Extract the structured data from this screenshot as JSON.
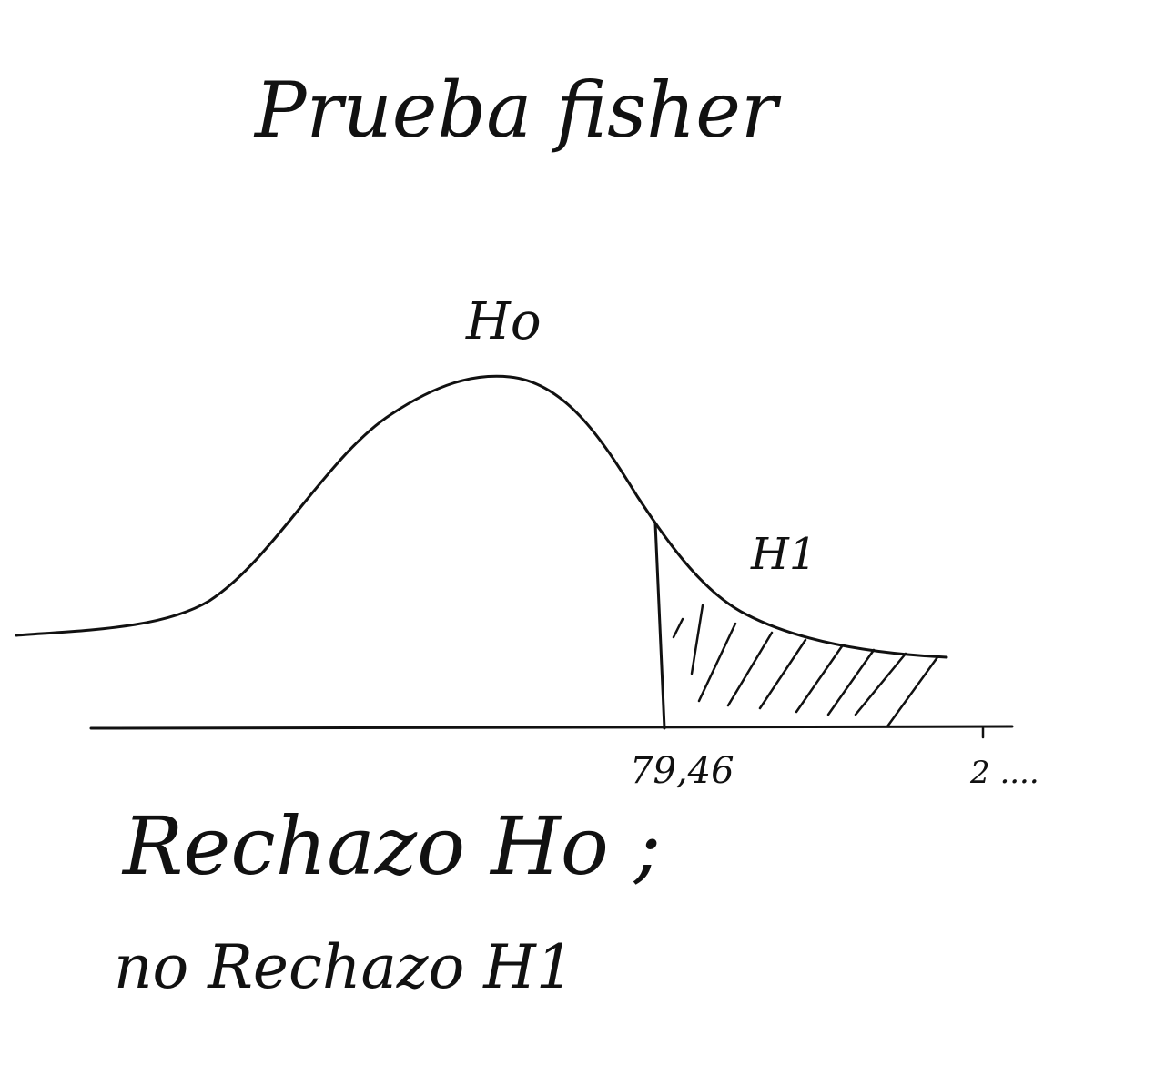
{
  "title": "Prueba fisher",
  "diagram": {
    "h0_label": "Ho",
    "h1_label": "H1",
    "critical_value_label": "79,46",
    "axis_end_label": "2 ...."
  },
  "conclusion": {
    "line1": "Rechazo Ho ;",
    "line2": "no Rechazo H1"
  },
  "colors": {
    "ink": "#111111",
    "background": "#ffffff"
  }
}
